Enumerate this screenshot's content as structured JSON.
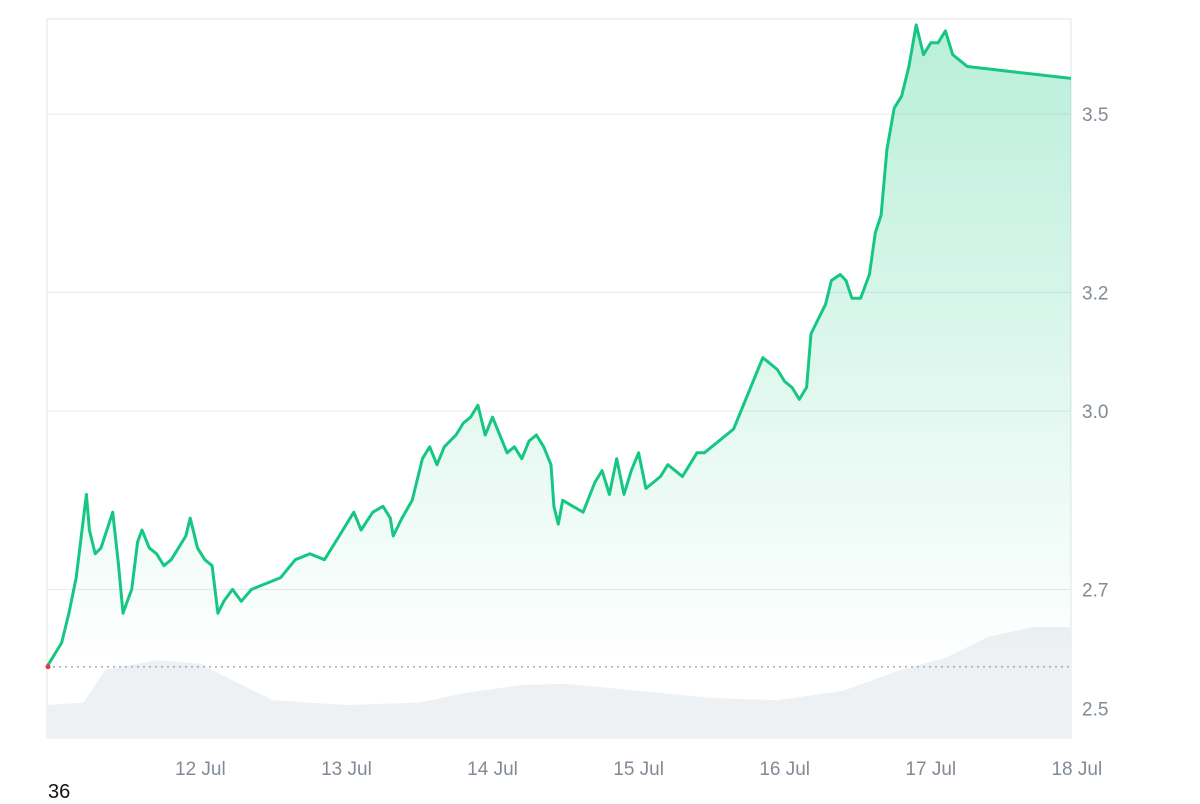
{
  "chart_data": {
    "type": "area",
    "title": "",
    "xlabel": "",
    "ylabel": "",
    "x_tick_labels": [
      "12 Jul",
      "13 Jul",
      "14 Jul",
      "15 Jul",
      "16 Jul",
      "17 Jul",
      "18 Jul"
    ],
    "x_range_days": [
      11.45,
      18.46
    ],
    "y_ticks": [
      2.5,
      2.7,
      3.0,
      3.2,
      3.5
    ],
    "y_tick_labels": [
      "2.5",
      "2.7",
      "3.0",
      "3.2",
      "3.5"
    ],
    "ylim": [
      2.45,
      3.66
    ],
    "baseline_value": 2.57,
    "grid": "horizontal",
    "series": [
      {
        "kind": "price",
        "points": [
          [
            11.45,
            2.57
          ],
          [
            11.5,
            2.59
          ],
          [
            11.55,
            2.61
          ],
          [
            11.6,
            2.66
          ],
          [
            11.65,
            2.72
          ],
          [
            11.7,
            2.82
          ],
          [
            11.72,
            2.86
          ],
          [
            11.74,
            2.8
          ],
          [
            11.78,
            2.76
          ],
          [
            11.82,
            2.77
          ],
          [
            11.86,
            2.8
          ],
          [
            11.9,
            2.83
          ],
          [
            11.94,
            2.74
          ],
          [
            11.97,
            2.66
          ],
          [
            12.0,
            2.68
          ],
          [
            12.03,
            2.7
          ],
          [
            12.07,
            2.78
          ],
          [
            12.1,
            2.8
          ],
          [
            12.15,
            2.77
          ],
          [
            12.2,
            2.76
          ],
          [
            12.25,
            2.74
          ],
          [
            12.3,
            2.75
          ],
          [
            12.35,
            2.77
          ],
          [
            12.4,
            2.79
          ],
          [
            12.43,
            2.82
          ],
          [
            12.48,
            2.77
          ],
          [
            12.53,
            2.75
          ],
          [
            12.58,
            2.74
          ],
          [
            12.62,
            2.66
          ],
          [
            12.66,
            2.68
          ],
          [
            12.72,
            2.7
          ],
          [
            12.78,
            2.68
          ],
          [
            12.85,
            2.7
          ],
          [
            12.95,
            2.71
          ],
          [
            13.05,
            2.72
          ],
          [
            13.15,
            2.75
          ],
          [
            13.25,
            2.76
          ],
          [
            13.35,
            2.75
          ],
          [
            13.45,
            2.79
          ],
          [
            13.55,
            2.83
          ],
          [
            13.6,
            2.8
          ],
          [
            13.68,
            2.83
          ],
          [
            13.75,
            2.84
          ],
          [
            13.8,
            2.82
          ],
          [
            13.82,
            2.79
          ],
          [
            13.88,
            2.82
          ],
          [
            13.95,
            2.85
          ],
          [
            14.02,
            2.92
          ],
          [
            14.07,
            2.94
          ],
          [
            14.12,
            2.91
          ],
          [
            14.17,
            2.94
          ],
          [
            14.25,
            2.96
          ],
          [
            14.3,
            2.98
          ],
          [
            14.35,
            2.99
          ],
          [
            14.4,
            3.01
          ],
          [
            14.45,
            2.96
          ],
          [
            14.5,
            2.99
          ],
          [
            14.55,
            2.96
          ],
          [
            14.6,
            2.93
          ],
          [
            14.65,
            2.94
          ],
          [
            14.7,
            2.92
          ],
          [
            14.75,
            2.95
          ],
          [
            14.8,
            2.96
          ],
          [
            14.85,
            2.94
          ],
          [
            14.9,
            2.91
          ],
          [
            14.92,
            2.84
          ],
          [
            14.95,
            2.81
          ],
          [
            14.98,
            2.85
          ],
          [
            15.05,
            2.84
          ],
          [
            15.12,
            2.83
          ],
          [
            15.2,
            2.88
          ],
          [
            15.25,
            2.9
          ],
          [
            15.3,
            2.86
          ],
          [
            15.35,
            2.92
          ],
          [
            15.4,
            2.86
          ],
          [
            15.45,
            2.9
          ],
          [
            15.5,
            2.93
          ],
          [
            15.55,
            2.87
          ],
          [
            15.6,
            2.88
          ],
          [
            15.65,
            2.89
          ],
          [
            15.7,
            2.91
          ],
          [
            15.75,
            2.9
          ],
          [
            15.8,
            2.89
          ],
          [
            15.85,
            2.91
          ],
          [
            15.9,
            2.93
          ],
          [
            15.95,
            2.93
          ],
          [
            16.05,
            2.95
          ],
          [
            16.15,
            2.97
          ],
          [
            16.25,
            3.03
          ],
          [
            16.3,
            3.06
          ],
          [
            16.35,
            3.09
          ],
          [
            16.4,
            3.08
          ],
          [
            16.45,
            3.07
          ],
          [
            16.5,
            3.05
          ],
          [
            16.55,
            3.04
          ],
          [
            16.6,
            3.02
          ],
          [
            16.65,
            3.04
          ],
          [
            16.68,
            3.13
          ],
          [
            16.72,
            3.15
          ],
          [
            16.78,
            3.18
          ],
          [
            16.82,
            3.22
          ],
          [
            16.88,
            3.23
          ],
          [
            16.92,
            3.22
          ],
          [
            16.96,
            3.19
          ],
          [
            17.02,
            3.19
          ],
          [
            17.08,
            3.23
          ],
          [
            17.12,
            3.3
          ],
          [
            17.16,
            3.33
          ],
          [
            17.2,
            3.44
          ],
          [
            17.25,
            3.51
          ],
          [
            17.3,
            3.53
          ],
          [
            17.35,
            3.58
          ],
          [
            17.4,
            3.65
          ],
          [
            17.45,
            3.6
          ],
          [
            17.5,
            3.62
          ],
          [
            17.55,
            3.62
          ],
          [
            17.6,
            3.64
          ],
          [
            17.65,
            3.6
          ],
          [
            17.7,
            3.59
          ],
          [
            17.75,
            3.58
          ],
          [
            18.46,
            3.56
          ]
        ]
      },
      {
        "kind": "volume",
        "points": [
          [
            11.45,
            0.28
          ],
          [
            11.7,
            0.3
          ],
          [
            11.85,
            0.58
          ],
          [
            12.2,
            0.66
          ],
          [
            12.5,
            0.63
          ],
          [
            12.7,
            0.5
          ],
          [
            13.0,
            0.32
          ],
          [
            13.5,
            0.28
          ],
          [
            14.0,
            0.3
          ],
          [
            14.3,
            0.38
          ],
          [
            14.7,
            0.45
          ],
          [
            15.0,
            0.46
          ],
          [
            15.5,
            0.4
          ],
          [
            16.0,
            0.34
          ],
          [
            16.45,
            0.32
          ],
          [
            16.9,
            0.4
          ],
          [
            17.3,
            0.58
          ],
          [
            17.6,
            0.68
          ],
          [
            17.9,
            0.86
          ],
          [
            18.2,
            0.94
          ],
          [
            18.46,
            0.94
          ]
        ]
      }
    ]
  },
  "corner_label": "36",
  "colors": {
    "line": "#16c784",
    "start_marker": "#ea3943",
    "fill_top": "#16c784",
    "grid": "#e6e9ee",
    "frame": "#e1e4e8",
    "volume": "#eef1f4",
    "baseline": "#a4abb5",
    "tick_text": "#818a96"
  }
}
